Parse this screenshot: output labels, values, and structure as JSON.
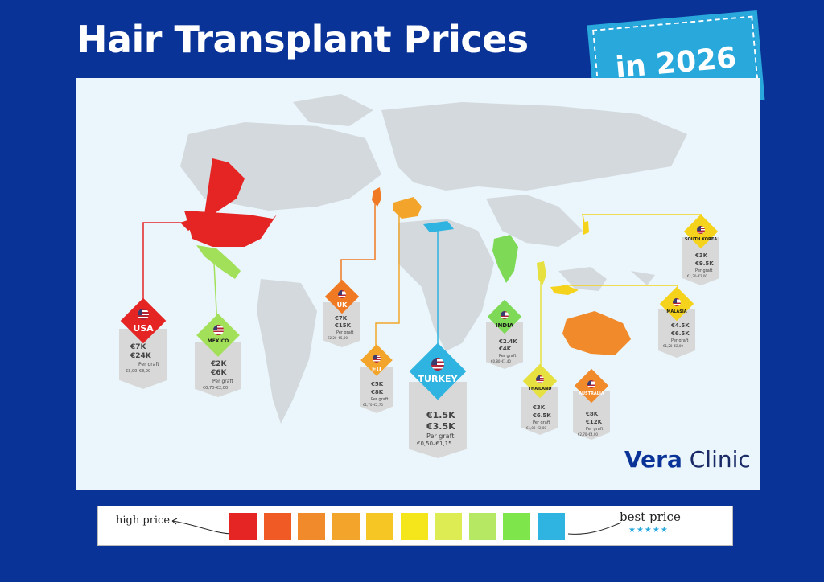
{
  "title": "Hair Transplant Prices",
  "year_tag": "in 2026",
  "brand": {
    "logo_first": "Vera",
    "logo_second": " Clinic"
  },
  "countries": [
    {
      "name": "USA",
      "low": "€7K",
      "high": "€24K",
      "per_graft": "Per graft",
      "range": "€3,00–€8,00",
      "color": "#e52424"
    },
    {
      "name": "MEXICO",
      "low": "€2K",
      "high": "€6K",
      "per_graft": "Per graft",
      "range": "€0,70–€2,00",
      "color": "#a3e05a"
    },
    {
      "name": "UK",
      "low": "€7K",
      "high": "€15K",
      "per_graft": "Per graft",
      "range": "€2,20–€5,00",
      "color": "#f07a24"
    },
    {
      "name": "EU",
      "low": "€5K",
      "high": "€8K",
      "per_graft": "Per graft",
      "range": "€1,70–€2,70",
      "color": "#f2a52a"
    },
    {
      "name": "TURKEY",
      "low": "€1.5K",
      "high": "€3.5K",
      "per_graft": "Per graft",
      "range": "€0,50–€1,15",
      "color": "#2fb3e0"
    },
    {
      "name": "INDIA",
      "low": "€2.4K",
      "high": "€4K",
      "per_graft": "Per graft",
      "range": "€0,80–€1,40",
      "color": "#7ed957"
    },
    {
      "name": "THAILAND",
      "low": "€3K",
      "high": "€6.5K",
      "per_graft": "Per graft",
      "range": "€1,00–€2,00",
      "color": "#e6e040"
    },
    {
      "name": "AUSTRALIA",
      "low": "€8K",
      "high": "€12K",
      "per_graft": "Per graft",
      "range": "€2,70–€4,00",
      "color": "#f08a2a"
    },
    {
      "name": "MALASIA",
      "low": "€4.5K",
      "high": "€6.5K",
      "per_graft": "Per graft",
      "range": "€1,20–€2,00",
      "color": "#f5d31c"
    },
    {
      "name": "SOUTH KOREA",
      "low": "€3K",
      "high": "€9.5K",
      "per_graft": "Per graft",
      "range": "€1,20–€2,00",
      "color": "#f5d31c"
    }
  ],
  "legend": {
    "high_label": "high price",
    "best_label": "best price",
    "stars": "★★★★★",
    "swatches": [
      "#e52424",
      "#f05a24",
      "#f08a2a",
      "#f2a52a",
      "#f5c624",
      "#f5e61c",
      "#dcec52",
      "#b6e864",
      "#7ee64a",
      "#2fb3e0"
    ]
  }
}
